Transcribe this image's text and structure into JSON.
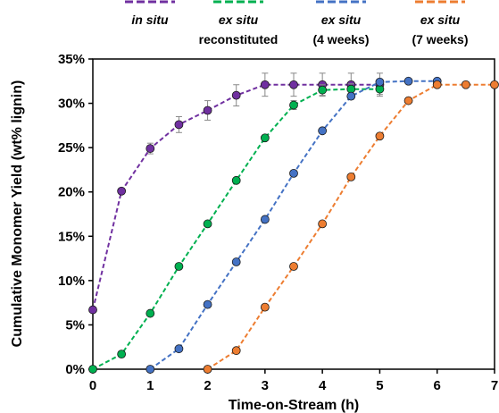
{
  "chart_data": {
    "type": "line",
    "xlabel": "Time-on-Stream (h)",
    "ylabel": "Cumulative Monomer Yield (wt% lignin)",
    "xlim": [
      0,
      7
    ],
    "ylim": [
      0,
      35
    ],
    "x_ticks": [
      "0",
      "1",
      "2",
      "3",
      "4",
      "5",
      "6",
      "7"
    ],
    "y_ticks": [
      "0%",
      "5%",
      "10%",
      "15%",
      "20%",
      "25%",
      "30%",
      "35%"
    ],
    "grid": false,
    "legend_position": "top",
    "series": [
      {
        "legend_line1": "in situ",
        "legend_line2": "",
        "color": "#7030A0",
        "x": [
          0,
          0.5,
          1,
          1.5,
          2,
          2.5,
          3,
          3.5,
          4,
          4.5,
          5
        ],
        "y": [
          6.7,
          20.1,
          24.9,
          27.6,
          29.2,
          30.9,
          32.1,
          32.1,
          32.1,
          32.1,
          32.1
        ],
        "error": [
          0,
          0,
          0.6,
          0.9,
          1.1,
          1.2,
          1.3,
          1.3,
          1.3,
          1.3,
          1.3
        ]
      },
      {
        "legend_line1": "ex situ",
        "legend_line2": "reconstituted",
        "color": "#00B050",
        "x": [
          0,
          0.5,
          1,
          1.5,
          2,
          2.5,
          3,
          3.5,
          4,
          4.5,
          5
        ],
        "y": [
          0,
          1.7,
          6.3,
          11.6,
          16.4,
          21.3,
          26.1,
          29.8,
          31.5,
          31.6,
          31.6
        ],
        "error": [
          0,
          0,
          0,
          0,
          0,
          0,
          0,
          0.5,
          0.6,
          0.6,
          0.6
        ]
      },
      {
        "legend_line1": "ex situ",
        "legend_line2": "(4 weeks)",
        "color": "#4472C4",
        "x": [
          1,
          1.5,
          2,
          2.5,
          3,
          3.5,
          4,
          4.5,
          5,
          5.5,
          6
        ],
        "y": [
          0,
          2.3,
          7.3,
          12.1,
          16.9,
          22.1,
          26.9,
          30.8,
          32.4,
          32.5,
          32.5
        ],
        "error": [
          0,
          0,
          0,
          0,
          0,
          0,
          0,
          0,
          0,
          0,
          0
        ]
      },
      {
        "legend_line1": "ex situ",
        "legend_line2": "(7 weeks)",
        "color": "#ED7D31",
        "x": [
          2,
          2.5,
          3,
          3.5,
          4,
          4.5,
          5,
          5.5,
          6,
          6.5,
          7
        ],
        "y": [
          0,
          2.1,
          7,
          11.6,
          16.4,
          21.7,
          26.3,
          30.3,
          32.1,
          32.1,
          32.1
        ],
        "error": [
          0,
          0,
          0,
          0,
          0,
          0,
          0,
          0,
          0,
          0,
          0
        ]
      }
    ]
  }
}
